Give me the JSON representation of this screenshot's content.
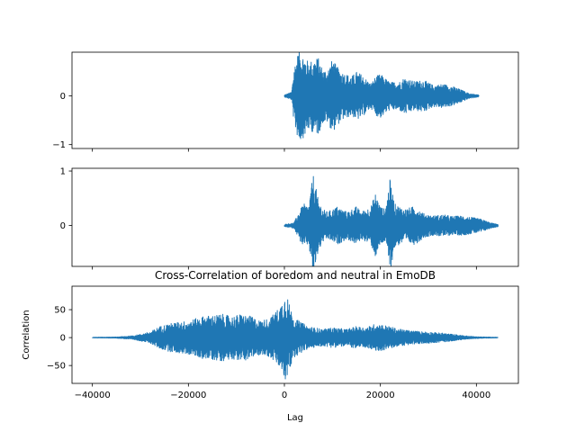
{
  "chart_data": [
    {
      "type": "line",
      "name": "boredom-signal",
      "title": "",
      "xlabel": "",
      "ylabel": "",
      "xlim": [
        -44250,
        48750
      ],
      "ylim": [
        -1.08,
        0.9
      ],
      "xticks": [
        -40000,
        -20000,
        0,
        20000,
        40000
      ],
      "yticks": [
        -1,
        0
      ],
      "ytick_labels": [
        "−1",
        "0"
      ],
      "show_x_tick_labels": false,
      "color": "#1f77b4",
      "signal": {
        "start": 0,
        "end": 40500,
        "envelope": [
          [
            0,
            0.02
          ],
          [
            1500,
            0.08
          ],
          [
            2000,
            0.6
          ],
          [
            3000,
            0.95
          ],
          [
            4000,
            0.85
          ],
          [
            5000,
            0.7
          ],
          [
            6000,
            0.75
          ],
          [
            7000,
            0.8
          ],
          [
            8000,
            0.55
          ],
          [
            9000,
            0.55
          ],
          [
            10000,
            0.75
          ],
          [
            11000,
            0.6
          ],
          [
            12000,
            0.5
          ],
          [
            14000,
            0.4
          ],
          [
            15000,
            0.5
          ],
          [
            16000,
            0.45
          ],
          [
            18000,
            0.25
          ],
          [
            19000,
            0.4
          ],
          [
            20000,
            0.45
          ],
          [
            22000,
            0.28
          ],
          [
            24000,
            0.3
          ],
          [
            25000,
            0.38
          ],
          [
            27000,
            0.3
          ],
          [
            29000,
            0.33
          ],
          [
            31000,
            0.22
          ],
          [
            33000,
            0.25
          ],
          [
            35000,
            0.2
          ],
          [
            37000,
            0.12
          ],
          [
            38500,
            0.05
          ],
          [
            40500,
            0.02
          ]
        ]
      }
    },
    {
      "type": "line",
      "name": "neutral-signal",
      "title": "",
      "xlabel": "",
      "ylabel": "",
      "xlim": [
        -44250,
        48750
      ],
      "ylim": [
        -0.75,
        1.05
      ],
      "xticks": [
        -40000,
        -20000,
        0,
        20000,
        40000
      ],
      "yticks": [
        0,
        1
      ],
      "ytick_labels": [
        "0",
        "1"
      ],
      "show_x_tick_labels": false,
      "color": "#1f77b4",
      "signal": {
        "start": 0,
        "end": 44500,
        "envelope": [
          [
            0,
            0.02
          ],
          [
            2000,
            0.05
          ],
          [
            3000,
            0.25
          ],
          [
            4000,
            0.4
          ],
          [
            5000,
            0.35
          ],
          [
            6000,
            0.95
          ],
          [
            7000,
            0.5
          ],
          [
            8000,
            0.3
          ],
          [
            9000,
            0.25
          ],
          [
            11000,
            0.35
          ],
          [
            12000,
            0.3
          ],
          [
            13000,
            0.25
          ],
          [
            15000,
            0.35
          ],
          [
            16000,
            0.25
          ],
          [
            17000,
            0.3
          ],
          [
            18000,
            0.35
          ],
          [
            19000,
            0.6
          ],
          [
            20000,
            0.35
          ],
          [
            21000,
            0.3
          ],
          [
            22000,
            0.85
          ],
          [
            23000,
            0.4
          ],
          [
            25000,
            0.3
          ],
          [
            27000,
            0.35
          ],
          [
            28000,
            0.3
          ],
          [
            29000,
            0.22
          ],
          [
            31000,
            0.18
          ],
          [
            33000,
            0.2
          ],
          [
            35000,
            0.17
          ],
          [
            37000,
            0.18
          ],
          [
            39000,
            0.15
          ],
          [
            41000,
            0.12
          ],
          [
            43000,
            0.05
          ],
          [
            44500,
            0.02
          ]
        ]
      }
    },
    {
      "type": "line",
      "name": "cross-correlation",
      "title": "Cross-Correlation of boredom and neutral in EmoDB",
      "xlabel": "Lag",
      "ylabel": "Correlation",
      "xlim": [
        -44250,
        48750
      ],
      "ylim": [
        -82,
        92
      ],
      "xticks": [
        -40000,
        -20000,
        0,
        20000,
        40000
      ],
      "xtick_labels": [
        "−40000",
        "−20000",
        "0",
        "20000",
        "40000"
      ],
      "yticks": [
        -50,
        0,
        50
      ],
      "ytick_labels": [
        "−50",
        "0",
        "50"
      ],
      "show_x_tick_labels": true,
      "color": "#1f77b4",
      "signal": {
        "start": -40000,
        "end": 44500,
        "envelope": [
          [
            -40000,
            0.5
          ],
          [
            -35000,
            1
          ],
          [
            -32000,
            3
          ],
          [
            -30000,
            6
          ],
          [
            -28000,
            10
          ],
          [
            -26000,
            20
          ],
          [
            -24000,
            25
          ],
          [
            -22000,
            28
          ],
          [
            -20000,
            30
          ],
          [
            -17000,
            38
          ],
          [
            -15000,
            40
          ],
          [
            -13000,
            42
          ],
          [
            -11000,
            38
          ],
          [
            -9000,
            42
          ],
          [
            -7000,
            38
          ],
          [
            -5000,
            30
          ],
          [
            -3000,
            35
          ],
          [
            -2000,
            45
          ],
          [
            -1000,
            55
          ],
          [
            0,
            75
          ],
          [
            500,
            80
          ],
          [
            1000,
            60
          ],
          [
            2000,
            35
          ],
          [
            3000,
            30
          ],
          [
            5000,
            20
          ],
          [
            8000,
            15
          ],
          [
            10000,
            18
          ],
          [
            13000,
            15
          ],
          [
            15000,
            20
          ],
          [
            17000,
            18
          ],
          [
            19000,
            25
          ],
          [
            21000,
            22
          ],
          [
            24000,
            15
          ],
          [
            27000,
            12
          ],
          [
            30000,
            10
          ],
          [
            33000,
            8
          ],
          [
            36000,
            5
          ],
          [
            38000,
            3
          ],
          [
            40000,
            1.5
          ],
          [
            44500,
            0.5
          ]
        ]
      }
    }
  ]
}
